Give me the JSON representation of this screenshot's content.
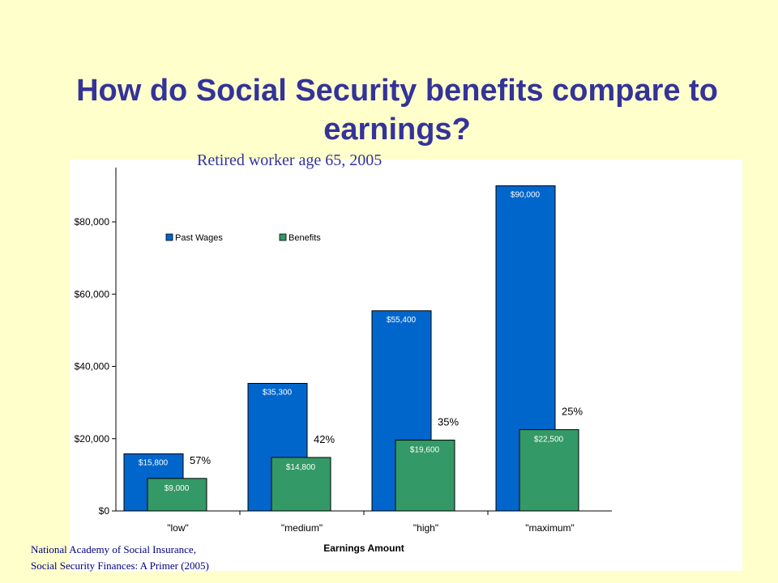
{
  "slide": {
    "title": "How do Social Security benefits compare to earnings?",
    "source_line1": "National Academy of Social Insurance,",
    "source_line2": "Social Security Finances:  A Primer  (2005)"
  },
  "colors": {
    "background": "#ffffcc",
    "title": "#333399",
    "past_wages": "#0066cc",
    "benefits": "#339966"
  },
  "chart_data": {
    "type": "bar",
    "subtitle": "Retired worker age 65, 2005",
    "categories": [
      "\"low\"",
      "\"medium\"",
      "\"high\"",
      "\"maximum\""
    ],
    "series": [
      {
        "name": "Past Wages",
        "values": [
          15800,
          35300,
          55400,
          90000
        ],
        "labels": [
          "$15,800",
          "$35,300",
          "$55,400",
          "$90,000"
        ]
      },
      {
        "name": "Benefits",
        "values": [
          9000,
          14800,
          19600,
          22500
        ],
        "labels": [
          "$9,000",
          "$14,800",
          "$19,600",
          "$22,500"
        ]
      }
    ],
    "replacement_rates": [
      "57%",
      "42%",
      "35%",
      "25%"
    ],
    "xlabel": "Earnings   Amount",
    "ylabel": "",
    "ylim": [
      0,
      95000
    ],
    "yticks": [
      0,
      20000,
      40000,
      60000,
      80000
    ],
    "ytick_labels": [
      "$0",
      "$20,000",
      "$40,000",
      "$60,000",
      "$80,000"
    ],
    "legend_position": "top-left",
    "grid": false
  }
}
